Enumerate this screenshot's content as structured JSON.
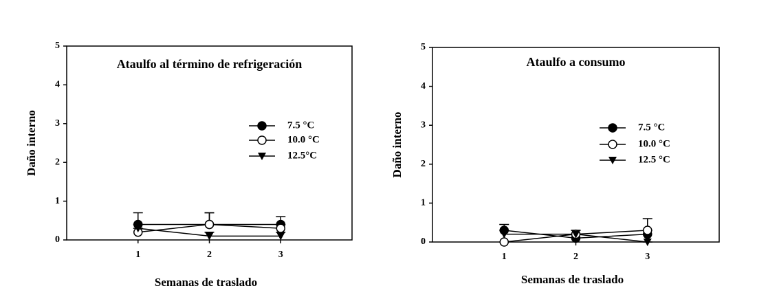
{
  "chart_data": [
    {
      "type": "line",
      "title": "Ataulfo al término de refrigeración",
      "xlabel": "Semanas de traslado",
      "ylabel": "Daño interno",
      "x": [
        1,
        2,
        3
      ],
      "xlim": [
        0,
        4
      ],
      "xticks": [
        1,
        2,
        3
      ],
      "ylim": [
        0,
        5
      ],
      "yticks": [
        0,
        1,
        2,
        3,
        4,
        5
      ],
      "grid": false,
      "series": [
        {
          "name": "7.5 °C",
          "color": "#000000",
          "marker": "circle-filled",
          "values": [
            0.4,
            0.4,
            0.4
          ],
          "errors": [
            0.3,
            0.3,
            0.2
          ]
        },
        {
          "name": "10.0 °C",
          "color": "#000000",
          "marker": "circle-open",
          "values": [
            0.2,
            0.4,
            0.3
          ],
          "errors": [
            0.1,
            0.3,
            0.1
          ]
        },
        {
          "name": "12.5°C",
          "color": "#000000",
          "marker": "triangle-down",
          "values": [
            0.3,
            0.1,
            0.1
          ],
          "errors": [
            0.1,
            0.1,
            0.1
          ]
        }
      ]
    },
    {
      "type": "line",
      "title": "Ataulfo a consumo",
      "xlabel": "Semanas de traslado",
      "ylabel": "Daño interno",
      "x": [
        1,
        2,
        3
      ],
      "xlim": [
        0,
        4
      ],
      "xticks": [
        1,
        2,
        3
      ],
      "ylim": [
        0,
        5
      ],
      "yticks": [
        0,
        1,
        2,
        3,
        4,
        5
      ],
      "grid": false,
      "series": [
        {
          "name": "7.5 °C",
          "color": "#000000",
          "marker": "circle-filled",
          "values": [
            0.3,
            0.1,
            0.2
          ],
          "errors": [
            0.15,
            0.1,
            0.1
          ]
        },
        {
          "name": "10.0 °C",
          "color": "#000000",
          "marker": "circle-open",
          "values": [
            0,
            0.2,
            0.3
          ],
          "errors": [
            0,
            0.1,
            0.3
          ]
        },
        {
          "name": "12.5 °C",
          "color": "#000000",
          "marker": "triangle-down",
          "values": [
            0.2,
            0.2,
            0
          ],
          "errors": [
            0.1,
            0.1,
            0
          ]
        }
      ]
    }
  ]
}
